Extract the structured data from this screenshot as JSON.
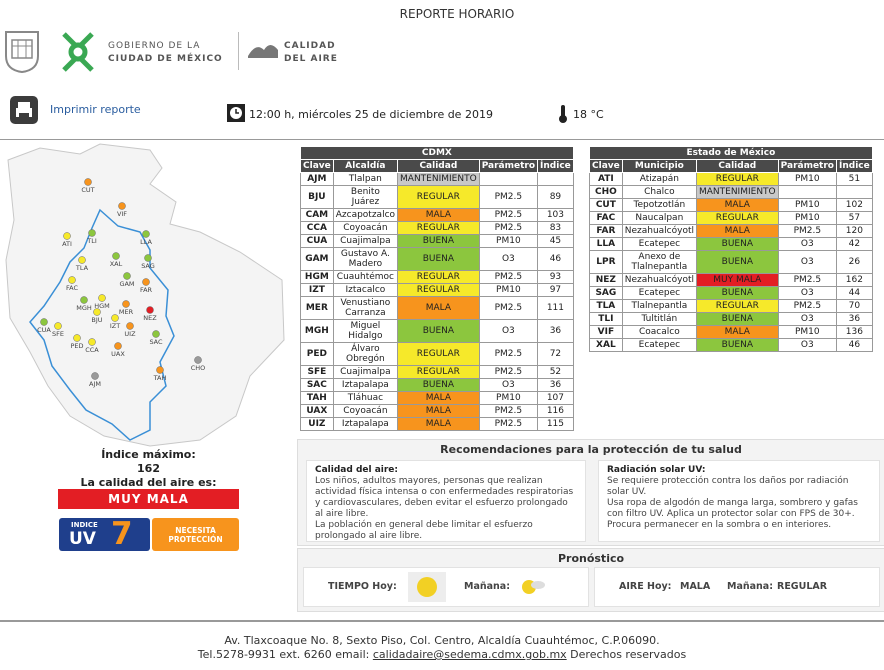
{
  "header": {
    "title": "REPORTE HORARIO",
    "gov_line1": "GOBIERNO DE LA",
    "gov_line2": "CIUDAD DE MÉXICO",
    "air_line1": "CALIDAD",
    "air_line2": "DEL AIRE"
  },
  "toolbar": {
    "print": "Imprimir reporte",
    "datetime": "12:00 h, miércoles 25 de diciembre de 2019",
    "temperature": "18 °C"
  },
  "quality_colors": {
    "BUENA": "#8cc63e",
    "REGULAR": "#f6e92a",
    "MALA": "#f7941d",
    "MUY MALA": "#e31e24",
    "MANTENIMIENTO": "#c8c8c8"
  },
  "map_stations": [
    {
      "code": "CUT",
      "color": "#f7941d"
    },
    {
      "code": "VIF",
      "color": "#f7941d"
    },
    {
      "code": "ATI",
      "color": "#f6e92a"
    },
    {
      "code": "TLI",
      "color": "#8cc63e"
    },
    {
      "code": "LLA",
      "color": "#8cc63e"
    },
    {
      "code": "XAL",
      "color": "#8cc63e"
    },
    {
      "code": "SAG",
      "color": "#8cc63e"
    },
    {
      "code": "TLA",
      "color": "#f6e92a"
    },
    {
      "code": "FAC",
      "color": "#f6e92a"
    },
    {
      "code": "GAM",
      "color": "#8cc63e"
    },
    {
      "code": "FAR",
      "color": "#f7941d"
    },
    {
      "code": "MGH",
      "color": "#8cc63e"
    },
    {
      "code": "HGM",
      "color": "#f6e92a"
    },
    {
      "code": "MER",
      "color": "#f7941d"
    },
    {
      "code": "BJU",
      "color": "#f6e92a"
    },
    {
      "code": "IZT",
      "color": "#f6e92a"
    },
    {
      "code": "NEZ",
      "color": "#e31e24"
    },
    {
      "code": "SFE",
      "color": "#f6e92a"
    },
    {
      "code": "CUA",
      "color": "#8cc63e"
    },
    {
      "code": "UIZ",
      "color": "#f7941d"
    },
    {
      "code": "PED",
      "color": "#f6e92a"
    },
    {
      "code": "CCA",
      "color": "#f6e92a"
    },
    {
      "code": "UAX",
      "color": "#f7941d"
    },
    {
      "code": "SAC",
      "color": "#8cc63e"
    },
    {
      "code": "CHO",
      "color": "#9a9a9a"
    },
    {
      "code": "TAH",
      "color": "#f7941d"
    },
    {
      "code": "AJM",
      "color": "#9a9a9a"
    }
  ],
  "summary": {
    "max_label": "Índice máximo:",
    "max_value": 162,
    "quality_label": "La calidad del aire es:",
    "quality": "MUY MALA",
    "uv_small": "INDICE",
    "uv_big": "UV",
    "uv_value": 7,
    "uv_advice": "NECESITA PROTECCIÓN"
  },
  "cdmx": {
    "title": "CDMX",
    "columns": [
      "Clave",
      "Alcaldía",
      "Calidad",
      "Parámetro",
      "Índice"
    ],
    "rows": [
      [
        "AJM",
        "Tlalpan",
        "MANTENIMIENTO"
      ],
      [
        "BJU",
        "Benito Juárez",
        "REGULAR",
        "PM2.5",
        89
      ],
      [
        "CAM",
        "Azcapotzalco",
        "MALA",
        "PM2.5",
        103
      ],
      [
        "CCA",
        "Coyoacán",
        "REGULAR",
        "PM2.5",
        83
      ],
      [
        "CUA",
        "Cuajimalpa",
        "BUENA",
        "PM10",
        45
      ],
      [
        "GAM",
        "Gustavo A. Madero",
        "BUENA",
        "O3",
        46
      ],
      [
        "HGM",
        "Cuauhtémoc",
        "REGULAR",
        "PM2.5",
        93
      ],
      [
        "IZT",
        "Iztacalco",
        "REGULAR",
        "PM10",
        97
      ],
      [
        "MER",
        "Venustiano Carranza",
        "MALA",
        "PM2.5",
        111
      ],
      [
        "MGH",
        "Miguel Hidalgo",
        "BUENA",
        "O3",
        36
      ],
      [
        "PED",
        "Álvaro Obregón",
        "REGULAR",
        "PM2.5",
        72
      ],
      [
        "SFE",
        "Cuajimalpa",
        "REGULAR",
        "PM2.5",
        52
      ],
      [
        "SAC",
        "Iztapalapa",
        "BUENA",
        "O3",
        36
      ],
      [
        "TAH",
        "Tláhuac",
        "MALA",
        "PM10",
        107
      ],
      [
        "UAX",
        "Coyoacán",
        "MALA",
        "PM2.5",
        116
      ],
      [
        "UIZ",
        "Iztapalapa",
        "MALA",
        "PM2.5",
        115
      ]
    ]
  },
  "edomex": {
    "title": "Estado de México",
    "columns": [
      "Clave",
      "Municipio",
      "Calidad",
      "Parámetro",
      "Índice"
    ],
    "rows": [
      [
        "ATI",
        "Atizapán",
        "REGULAR",
        "PM10",
        51
      ],
      [
        "CHO",
        "Chalco",
        "MANTENIMIENTO"
      ],
      [
        "CUT",
        "Tepotzotlán",
        "MALA",
        "PM10",
        102
      ],
      [
        "FAC",
        "Naucalpan",
        "REGULAR",
        "PM10",
        57
      ],
      [
        "FAR",
        "Nezahualcóyotl",
        "MALA",
        "PM2.5",
        120
      ],
      [
        "LLA",
        "Ecatepec",
        "BUENA",
        "O3",
        42
      ],
      [
        "LPR",
        "Anexo de Tlalnepantla",
        "BUENA",
        "O3",
        26
      ],
      [
        "NEZ",
        "Nezahualcóyotl",
        "MUY MALA",
        "PM2.5",
        162
      ],
      [
        "SAG",
        "Ecatepec",
        "BUENA",
        "O3",
        44
      ],
      [
        "TLA",
        "Tlalnepantla",
        "REGULAR",
        "PM2.5",
        70
      ],
      [
        "TLI",
        "Tultitlán",
        "BUENA",
        "O3",
        36
      ],
      [
        "VIF",
        "Coacalco",
        "MALA",
        "PM10",
        136
      ],
      [
        "XAL",
        "Ecatepec",
        "BUENA",
        "O3",
        46
      ]
    ]
  },
  "recommendations": {
    "title": "Recomendaciones para la protección de tu salud",
    "air": {
      "heading": "Calidad del aire:",
      "paragraphs": [
        "Los niños, adultos mayores, personas que realizan actividad física intensa o con enfermedades respiratorias y cardiovasculares, deben evitar el esfuerzo prolongado al aire libre.",
        "La población en general debe limitar el esfuerzo prolongado al aire libre."
      ]
    },
    "uv": {
      "heading": "Radiación solar UV:",
      "paragraphs": [
        "Se requiere protección contra los daños por radiación solar UV.",
        "Usa ropa de algodón de manga larga, sombrero y gafas con filtro UV. Aplica un protector solar con FPS de 30+.",
        "Procura permanecer en la sombra o en interiores."
      ]
    }
  },
  "forecast": {
    "title": "Pronóstico",
    "weather_today": "TIEMPO Hoy:",
    "weather_tomorrow": "Mañana:",
    "air_today_label": "AIRE Hoy:",
    "air_today": "MALA",
    "air_tomorrow_label": "Mañana:",
    "air_tomorrow": "REGULAR"
  },
  "footer": {
    "address": "Av. Tlaxcoaque No. 8, Sexto Piso, Col. Centro, Alcaldía Cuauhtémoc, C.P.06090.",
    "phone": "Tel.5278-9931 ext. 6260 email:",
    "email": "calidadaire@sedema.cdmx.gob.mx",
    "rights": "Derechos reservados"
  }
}
